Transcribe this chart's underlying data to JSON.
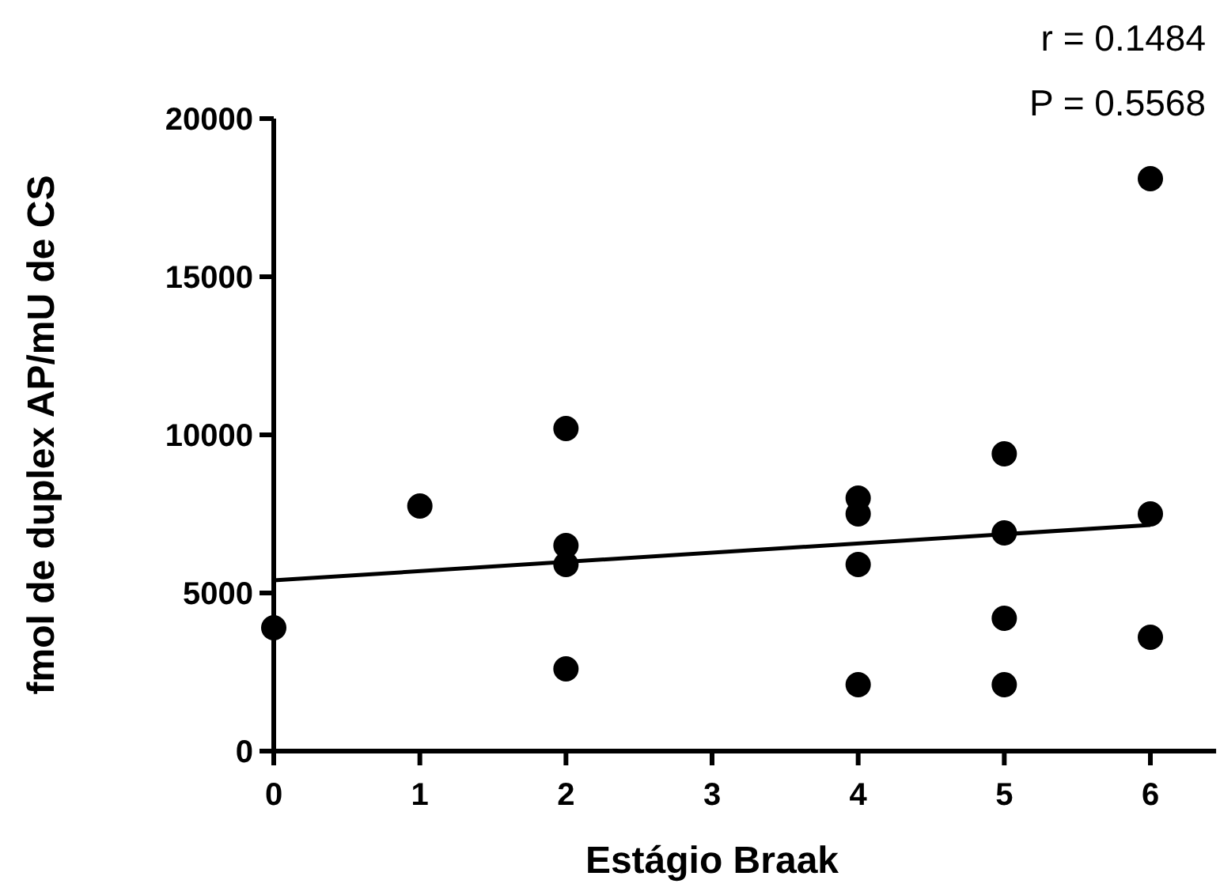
{
  "chart_data": {
    "type": "scatter",
    "xlabel": "Estágio Braak",
    "ylabel": "fmol de duplex AP/mU de CS",
    "annotations": [
      "r = 0.1484",
      "P =  0.5568"
    ],
    "marker": "circle",
    "grid": false,
    "xlim": [
      0,
      6.45
    ],
    "xticks": [
      0,
      1,
      2,
      3,
      4,
      5,
      6
    ],
    "ylim": [
      0,
      20000
    ],
    "yticks": [
      0,
      5000,
      10000,
      15000,
      20000
    ],
    "series": [
      {
        "color": "#000000",
        "x": [
          0,
          1,
          2,
          2,
          2,
          2,
          4,
          4,
          4,
          4,
          5,
          5,
          5,
          5,
          6,
          6,
          6
        ],
        "values": [
          3900,
          7750,
          10200,
          6500,
          5900,
          2600,
          8000,
          7500,
          5900,
          2100,
          9400,
          6900,
          4200,
          2100,
          18100,
          7500,
          3600
        ]
      },
      {
        "type": "line",
        "color": "#000000",
        "marker": "none",
        "x": [
          0,
          6
        ],
        "values": [
          5400,
          7150
        ]
      }
    ]
  }
}
